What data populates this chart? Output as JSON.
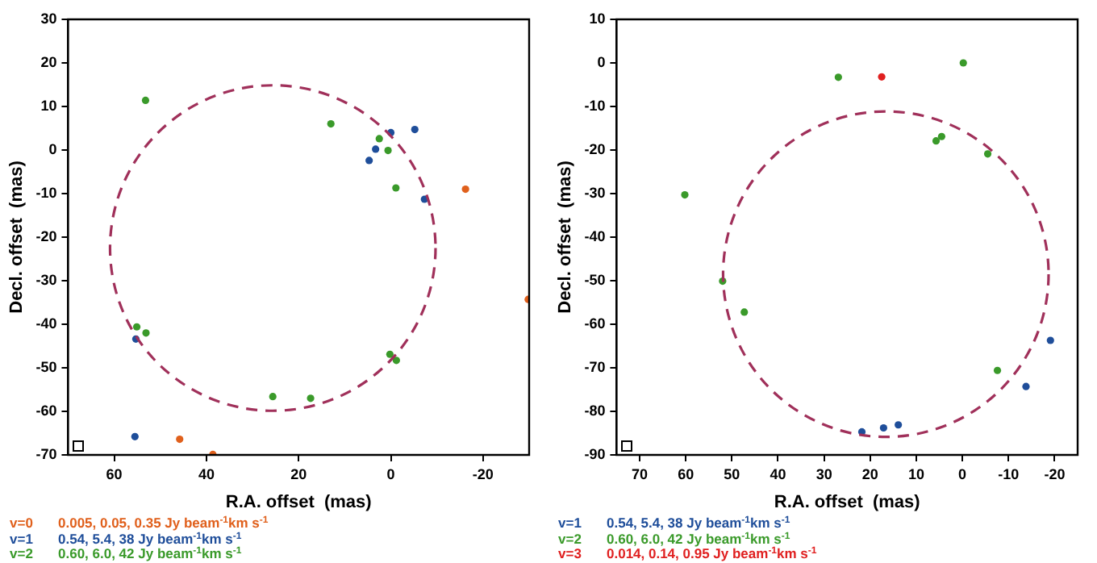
{
  "chart_data": [
    {
      "type": "scatter",
      "xlabel": "R.A. offset  (mas)",
      "ylabel": "Decl. offset  (mas)",
      "xlim": [
        70,
        -30
      ],
      "ylim": [
        -70,
        30
      ],
      "xticks": [
        60,
        40,
        20,
        0,
        -20
      ],
      "yticks": [
        -70,
        -60,
        -50,
        -40,
        -30,
        -20,
        -10,
        0,
        10,
        20,
        30
      ],
      "grid": false,
      "legend": "bottom left",
      "marker": "circle",
      "series": [
        {
          "name": "v=0",
          "color": "#e0601c",
          "x": [
            -16.2,
            -29.8,
            45.8,
            38.6
          ],
          "values": [
            -9,
            -34.3,
            -66.4,
            -69.9
          ]
        },
        {
          "name": "v=1",
          "color": "#1f4e9a",
          "x": [
            0,
            -5.2,
            3.3,
            4.7,
            -7.3,
            55.3,
            55.5
          ],
          "values": [
            4,
            4.7,
            0.2,
            -2.4,
            -11.3,
            -43.4,
            -65.8
          ]
        },
        {
          "name": "v=2",
          "color": "#3a9a2a",
          "x": [
            53.2,
            13,
            0.6,
            -1.1,
            55.1,
            53.1,
            0.2,
            -1.2,
            25.6,
            17.4,
            2.5
          ],
          "values": [
            11.4,
            6,
            -0.1,
            -8.7,
            -40.6,
            -42,
            -46.9,
            -48.3,
            -56.6,
            -57,
            2.6
          ]
        }
      ],
      "annotations": [
        "0.005, 0.05, 0.35 Jy beam$^{-1}$km s$^{-1}$",
        "0.54, 5.4, 38 Jy beam$^{-1}$km s$^{-1}$",
        "0.60, 6.0, 42 Jy beam$^{-1}$km s$^{-1}$"
      ]
    },
    {
      "type": "scatter",
      "xlabel": "R.A. offset  (mas)",
      "ylabel": "Decl. offset  (mas)",
      "xlim": [
        75,
        -25
      ],
      "ylim": [
        -90,
        10
      ],
      "xticks": [
        70,
        60,
        50,
        40,
        30,
        20,
        10,
        0,
        -10,
        -20
      ],
      "yticks": [
        -90,
        -80,
        -70,
        -60,
        -50,
        -40,
        -30,
        -20,
        -10,
        0,
        10
      ],
      "grid": false,
      "legend": "bottom left",
      "marker": "circle",
      "series": [
        {
          "name": "v=1",
          "color": "#1f4e9a",
          "x": [
            21.8,
            17.1,
            13.9,
            -13.8,
            -19.1
          ],
          "values": [
            -84.7,
            -83.8,
            -83.1,
            -74.3,
            -63.7
          ]
        },
        {
          "name": "v=2",
          "color": "#3a9a2a",
          "x": [
            26.9,
            -0.2,
            60.2,
            52,
            47.3,
            5.7,
            4.5,
            -5.5,
            -7.6
          ],
          "values": [
            -3.3,
            0,
            -30.3,
            -50.1,
            -57.2,
            -17.9,
            -16.9,
            -20.9,
            -70.6
          ]
        },
        {
          "name": "v=3",
          "color": "#e02020",
          "x": [
            17.5
          ],
          "values": [
            -3.2
          ]
        }
      ],
      "annotations": [
        "0.54, 5.4, 38 Jy beam$^{-1}$km s$^{-1}$",
        "0.60, 6.0, 42 Jy beam$^{-1}$km s$^{-1}$",
        "0.014, 0.14, 0.95 Jy beam$^{-1}$km s$^{-1}$"
      ]
    }
  ]
}
